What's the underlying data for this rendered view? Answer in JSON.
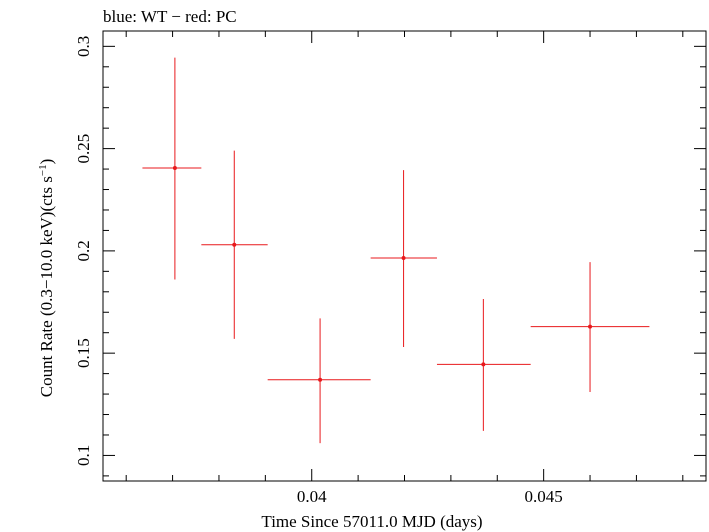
{
  "chart_data": {
    "type": "scatter",
    "title": "blue: WT − red: PC",
    "xlabel": "Time Since 57011.0 MJD (days)",
    "ylabel_main": "Count Rate (0.3−10.0 keV)(cts s",
    "ylabel_sup": "−1",
    "ylabel_end": ")",
    "xlim": [
      0.0355,
      0.0485
    ],
    "ylim": [
      0.0875,
      0.3075
    ],
    "x_ticks": [
      {
        "value": 0.04,
        "label": "0.04"
      },
      {
        "value": 0.045,
        "label": "0.045"
      }
    ],
    "y_ticks": [
      {
        "value": 0.1,
        "label": "0.1"
      },
      {
        "value": 0.15,
        "label": "0.15"
      },
      {
        "value": 0.2,
        "label": "0.2"
      },
      {
        "value": 0.25,
        "label": "0.25"
      },
      {
        "value": 0.3,
        "label": "0.3"
      }
    ],
    "grid": false,
    "series": [
      {
        "color": "#e8191c",
        "points": [
          {
            "x": 0.03705,
            "xlo": 0.03635,
            "xhi": 0.03762,
            "y": 0.2405,
            "ylo": 0.186,
            "yhi": 0.2945
          },
          {
            "x": 0.03833,
            "xlo": 0.03762,
            "xhi": 0.03905,
            "y": 0.203,
            "ylo": 0.157,
            "yhi": 0.249
          },
          {
            "x": 0.04018,
            "xlo": 0.03905,
            "xhi": 0.04127,
            "y": 0.137,
            "ylo": 0.106,
            "yhi": 0.167
          },
          {
            "x": 0.04198,
            "xlo": 0.04127,
            "xhi": 0.0427,
            "y": 0.1965,
            "ylo": 0.153,
            "yhi": 0.2395
          },
          {
            "x": 0.0437,
            "xlo": 0.0427,
            "xhi": 0.04472,
            "y": 0.1445,
            "ylo": 0.112,
            "yhi": 0.1765
          },
          {
            "x": 0.046,
            "xlo": 0.04472,
            "xhi": 0.04728,
            "y": 0.163,
            "ylo": 0.131,
            "yhi": 0.1945
          }
        ]
      }
    ]
  }
}
